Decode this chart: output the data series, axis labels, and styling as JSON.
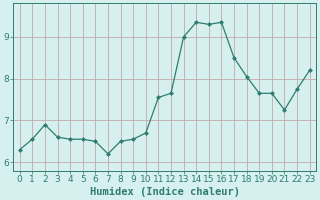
{
  "x": [
    0,
    1,
    2,
    3,
    4,
    5,
    6,
    7,
    8,
    9,
    10,
    11,
    12,
    13,
    14,
    15,
    16,
    17,
    18,
    19,
    20,
    21,
    22,
    23
  ],
  "y": [
    6.3,
    6.55,
    6.9,
    6.6,
    6.55,
    6.55,
    6.5,
    6.2,
    6.5,
    6.55,
    6.7,
    7.55,
    7.65,
    9.0,
    9.35,
    9.3,
    9.35,
    8.5,
    8.05,
    7.65,
    7.65,
    7.25,
    7.75,
    8.2
  ],
  "line_color": "#2e7d6e",
  "marker": "D",
  "marker_size": 2,
  "bg_color": "#d6f0f0",
  "grid_color": "#c4a8a8",
  "xlabel": "Humidex (Indice chaleur)",
  "ylim": [
    5.8,
    9.8
  ],
  "xlim": [
    -0.5,
    23.5
  ],
  "yticks": [
    6,
    7,
    8,
    9
  ],
  "xticks": [
    0,
    1,
    2,
    3,
    4,
    5,
    6,
    7,
    8,
    9,
    10,
    11,
    12,
    13,
    14,
    15,
    16,
    17,
    18,
    19,
    20,
    21,
    22,
    23
  ],
  "axis_color": "#2e7d6e",
  "tick_color": "#2e7d6e",
  "xlabel_fontsize": 7.5,
  "tick_fontsize": 6.5,
  "linewidth": 0.9
}
